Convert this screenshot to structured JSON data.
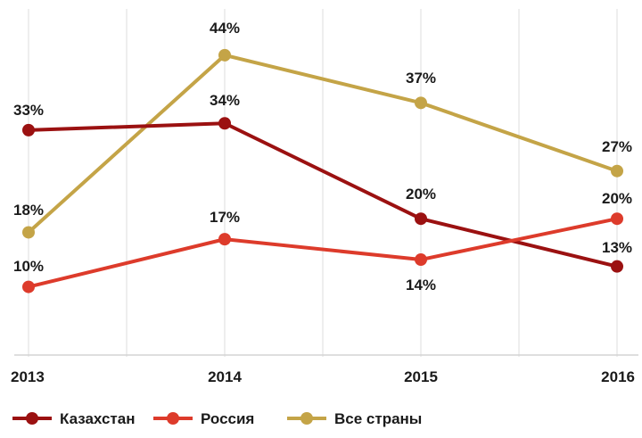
{
  "chart_data": {
    "type": "line",
    "categories": [
      "2013",
      "2014",
      "2015",
      "2016"
    ],
    "ylim": [
      0,
      50
    ],
    "grid": "vertical",
    "legend_position": "bottom-left",
    "series": [
      {
        "name": "Казахстан",
        "color": "#9b1111",
        "values": [
          33,
          34,
          20,
          13
        ],
        "labels": [
          "33%",
          "34%",
          "20%",
          "13%"
        ]
      },
      {
        "name": "Россия",
        "color": "#dd3b2b",
        "values": [
          10,
          17,
          14,
          20
        ],
        "labels": [
          "10%",
          "17%",
          "14%",
          "20%"
        ]
      },
      {
        "name": "Все страны",
        "color": "#c4a447",
        "values": [
          18,
          44,
          37,
          27
        ],
        "labels": [
          "18%",
          "44%",
          "37%",
          "27%"
        ]
      }
    ]
  }
}
